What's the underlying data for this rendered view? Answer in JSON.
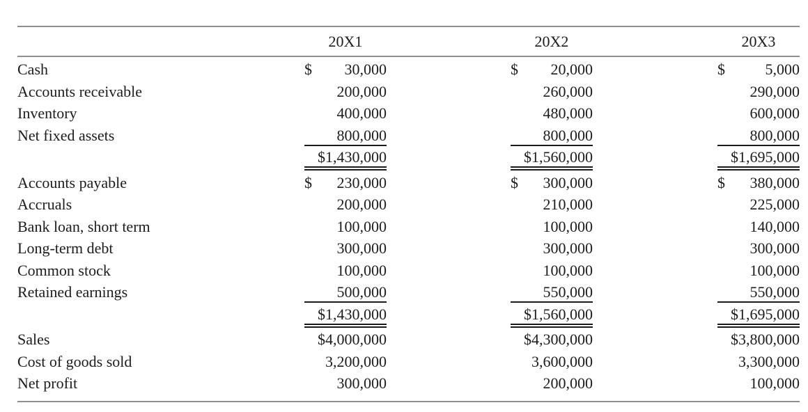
{
  "columns": {
    "c1": "20X1",
    "c2": "20X2",
    "c3": "20X3"
  },
  "rows": [
    {
      "label": "Cash",
      "d": "$",
      "v1": "30,000",
      "v2": "20,000",
      "v3": "5,000"
    },
    {
      "label": "Accounts receivable",
      "v1": "200,000",
      "v2": "260,000",
      "v3": "290,000"
    },
    {
      "label": "Inventory",
      "v1": "400,000",
      "v2": "480,000",
      "v3": "600,000"
    },
    {
      "label": "Net fixed assets",
      "v1": "800,000",
      "v2": "800,000",
      "v3": "800,000"
    },
    {
      "label": "",
      "v1": "$1,430,000",
      "v2": "$1,560,000",
      "v3": "$1,695,000"
    },
    {
      "label": "Accounts payable",
      "d": "$",
      "v1": "230,000",
      "v2": "300,000",
      "v3": "380,000"
    },
    {
      "label": "Accruals",
      "v1": "200,000",
      "v2": "210,000",
      "v3": "225,000"
    },
    {
      "label": "Bank loan, short term",
      "v1": "100,000",
      "v2": "100,000",
      "v3": "140,000"
    },
    {
      "label": "Long-term debt",
      "v1": "300,000",
      "v2": "300,000",
      "v3": "300,000"
    },
    {
      "label": "Common stock",
      "v1": "100,000",
      "v2": "100,000",
      "v3": "100,000"
    },
    {
      "label": "Retained earnings",
      "v1": "500,000",
      "v2": "550,000",
      "v3": "550,000"
    },
    {
      "label": "",
      "v1": "$1,430,000",
      "v2": "$1,560,000",
      "v3": "$1,695,000"
    },
    {
      "label": "Sales",
      "v1": "$4,000,000",
      "v2": "$4,300,000",
      "v3": "$3,800,000"
    },
    {
      "label": "Cost of goods sold",
      "v1": "3,200,000",
      "v2": "3,600,000",
      "v3": "3,300,000"
    },
    {
      "label": "Net profit",
      "v1": "300,000",
      "v2": "200,000",
      "v3": "100,000"
    }
  ]
}
